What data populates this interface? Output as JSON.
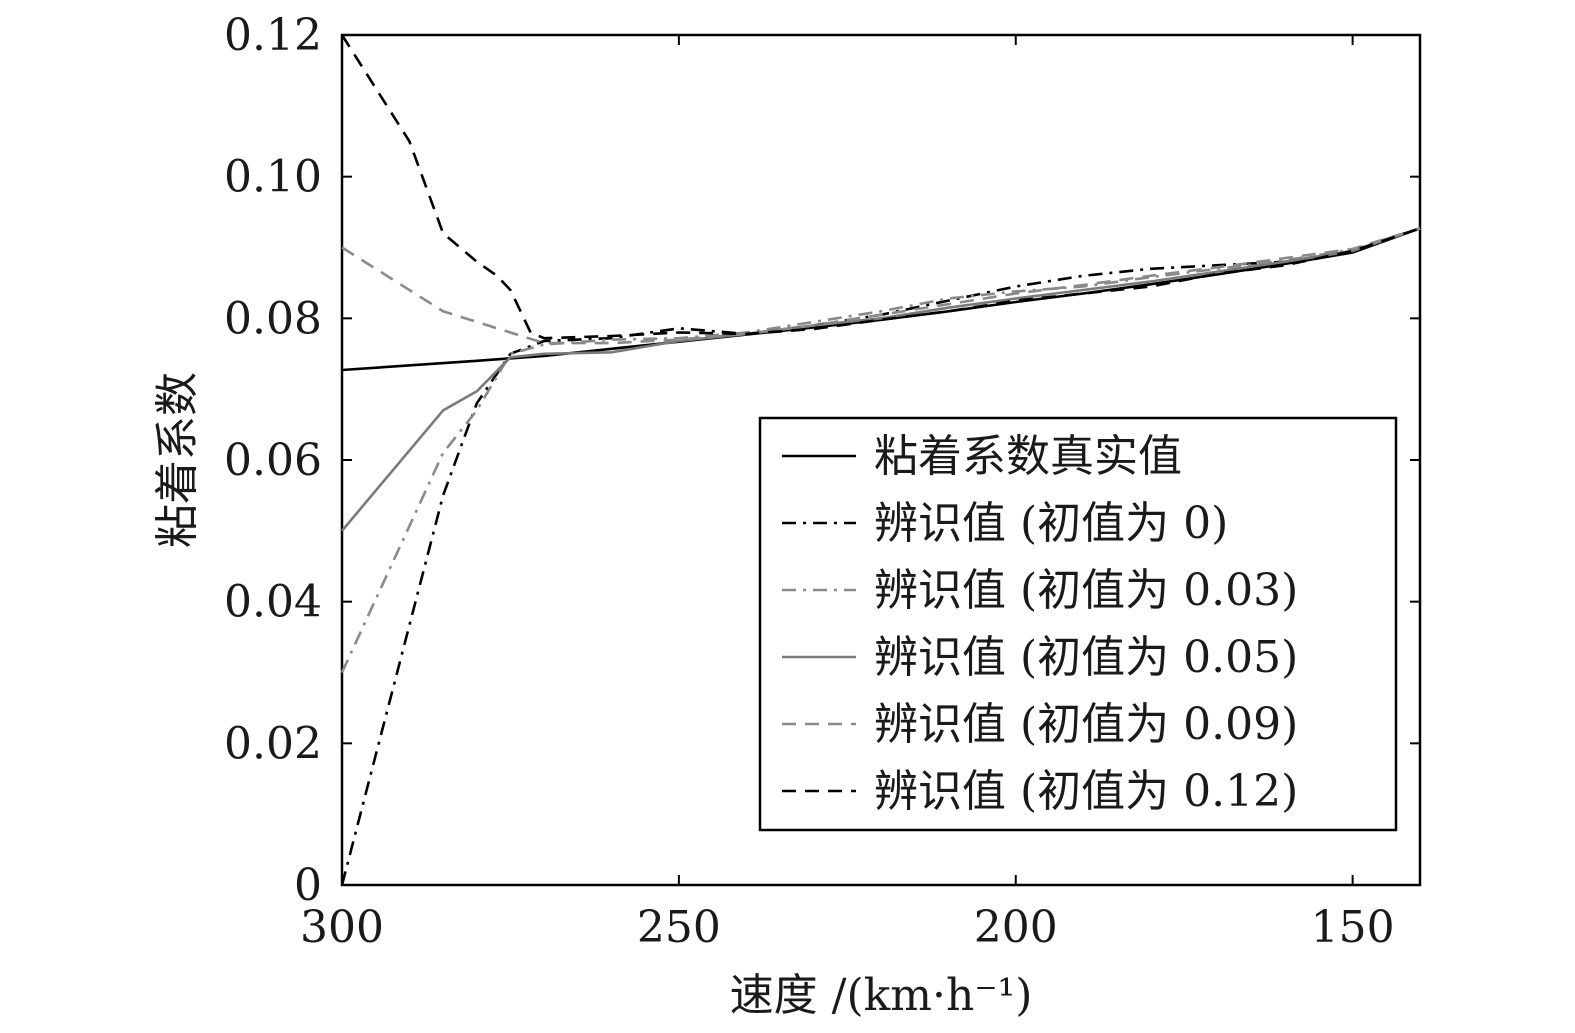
{
  "chart_data": {
    "type": "line",
    "title": "",
    "xlabel": "速度 /(km·h⁻¹)",
    "ylabel": "粘着系数",
    "xlim": [
      300,
      140
    ],
    "ylim": [
      0,
      0.12
    ],
    "x_reversed": true,
    "x_ticks": [
      300,
      250,
      200,
      150
    ],
    "x_tick_labels": [
      "300",
      "250",
      "200",
      "150"
    ],
    "y_ticks": [
      0,
      0.02,
      0.04,
      0.06,
      0.08,
      0.1,
      0.12
    ],
    "y_tick_labels": [
      "0",
      "0.02",
      "0.04",
      "0.06",
      "0.08",
      "0.10",
      "0.12"
    ],
    "grid": false,
    "legend_position": "lower-right",
    "series": [
      {
        "name": "粘着系数真实值",
        "color": "#000000",
        "dash": "solid",
        "x": [
          300,
          280,
          270,
          260,
          250,
          240,
          230,
          220,
          210,
          200,
          190,
          180,
          170,
          160,
          150,
          140
        ],
        "y": [
          0.0727,
          0.074,
          0.0747,
          0.0757,
          0.0767,
          0.0777,
          0.0787,
          0.0798,
          0.081,
          0.0823,
          0.0835,
          0.0848,
          0.0862,
          0.0877,
          0.0893,
          0.0927
        ]
      },
      {
        "name": "辨识值 (初值为 0)",
        "color": "#000000",
        "dash": "dashdot",
        "x": [
          300,
          285,
          280,
          275,
          270,
          260,
          250,
          240,
          230,
          220,
          210,
          200,
          190,
          180,
          170,
          160,
          150,
          140
        ],
        "y": [
          0.0,
          0.055,
          0.068,
          0.075,
          0.0768,
          0.0772,
          0.0786,
          0.0778,
          0.079,
          0.0805,
          0.0825,
          0.0845,
          0.086,
          0.087,
          0.0875,
          0.088,
          0.0895,
          0.0927
        ]
      },
      {
        "name": "辨识值 (初值为 0.03)",
        "color": "#8a8a8a",
        "dash": "dashdot",
        "x": [
          300,
          285,
          280,
          275,
          270,
          260,
          250,
          240,
          230,
          220,
          210,
          200,
          190,
          180,
          170,
          160,
          150,
          140
        ],
        "y": [
          0.03,
          0.061,
          0.067,
          0.075,
          0.0763,
          0.077,
          0.0772,
          0.078,
          0.0795,
          0.081,
          0.0828,
          0.0838,
          0.0845,
          0.0858,
          0.087,
          0.0882,
          0.0897,
          0.0927
        ]
      },
      {
        "name": "辨识值 (初值为 0.05)",
        "color": "#7a7a7a",
        "dash": "solid",
        "x": [
          300,
          285,
          280,
          275,
          270,
          260,
          250,
          240,
          230,
          220,
          210,
          200,
          190,
          180,
          170,
          160,
          150,
          140
        ],
        "y": [
          0.05,
          0.067,
          0.0697,
          0.0745,
          0.075,
          0.0752,
          0.0768,
          0.0778,
          0.079,
          0.08,
          0.0815,
          0.0828,
          0.084,
          0.0852,
          0.0866,
          0.088,
          0.0895,
          0.0927
        ]
      },
      {
        "name": "辨识值 (初值为 0.09)",
        "color": "#8a8a8a",
        "dash": "dashed",
        "x": [
          300,
          290,
          285,
          280,
          275,
          270,
          260,
          250,
          240,
          230,
          220,
          210,
          200,
          190,
          180,
          170,
          160,
          150,
          140
        ],
        "y": [
          0.09,
          0.084,
          0.081,
          0.0795,
          0.078,
          0.0765,
          0.0765,
          0.077,
          0.0778,
          0.079,
          0.0805,
          0.082,
          0.0835,
          0.0847,
          0.086,
          0.0872,
          0.0885,
          0.0898,
          0.0927
        ]
      },
      {
        "name": "辨识值 (初值为 0.12)",
        "color": "#000000",
        "dash": "dashed",
        "x": [
          300,
          290,
          285,
          280,
          277,
          275,
          272,
          270,
          260,
          250,
          240,
          230,
          220,
          210,
          200,
          190,
          180,
          170,
          160,
          150,
          140
        ],
        "y": [
          0.12,
          0.105,
          0.092,
          0.088,
          0.086,
          0.084,
          0.078,
          0.0772,
          0.0775,
          0.078,
          0.0778,
          0.0785,
          0.0798,
          0.081,
          0.0825,
          0.0835,
          0.0845,
          0.0863,
          0.0875,
          0.0895,
          0.0927
        ]
      }
    ]
  }
}
